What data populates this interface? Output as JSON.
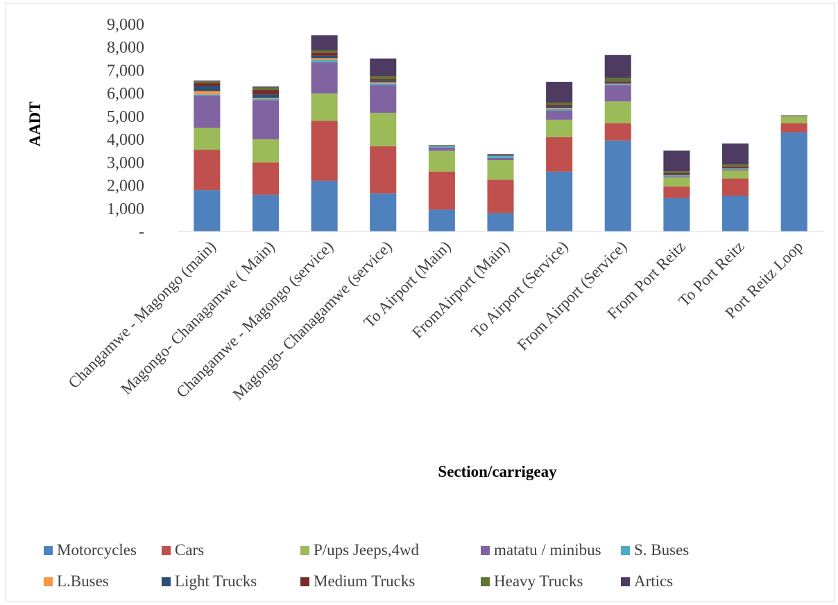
{
  "chart_data": {
    "type": "bar",
    "stacked": true,
    "title": "",
    "xlabel": "Section/carrigeay",
    "ylabel": "AADT",
    "ylim": [
      0,
      9000
    ],
    "yticks": [
      0,
      1000,
      2000,
      3000,
      4000,
      5000,
      6000,
      7000,
      8000,
      9000
    ],
    "ytick_labels": [
      "-",
      "1,000",
      "2,000",
      "3,000",
      "4,000",
      "5,000",
      "6,000",
      "7,000",
      "8,000",
      "9,000"
    ],
    "grid": false,
    "legend_position": "bottom",
    "categories": [
      "Changamwe - Magongo (main)",
      "Magongo- Chanagamwe ( Main)",
      "Changamwe - Magongo (service)",
      "Magongo- Chanagamwe (service)",
      "To Airport (Main)",
      "FromAirport (Main)",
      "To Airport (Service)",
      "From Airport (Service)",
      "From Port Reitz",
      "To Port Reitz",
      "Port Reitz Loop"
    ],
    "series": [
      {
        "name": "Motorcycles",
        "color": "#4f81bd",
        "values": [
          1800,
          1600,
          2200,
          1650,
          950,
          800,
          2600,
          3950,
          1450,
          1550,
          4300
        ]
      },
      {
        "name": "Cars",
        "color": "#c0504d",
        "values": [
          1750,
          1400,
          2600,
          2050,
          1650,
          1450,
          1500,
          750,
          500,
          750,
          400
        ]
      },
      {
        "name": "P/ups Jeeps,4wd",
        "color": "#9bbb59",
        "values": [
          950,
          1000,
          1200,
          1450,
          900,
          850,
          750,
          950,
          400,
          350,
          300
        ]
      },
      {
        "name": "matatu / minibus",
        "color": "#8064a2",
        "values": [
          1400,
          1700,
          1350,
          1200,
          150,
          100,
          400,
          700,
          50,
          50,
          30
        ]
      },
      {
        "name": "S.  Buses",
        "color": "#4bacc6",
        "values": [
          50,
          60,
          100,
          80,
          50,
          80,
          80,
          50,
          30,
          30,
          5
        ]
      },
      {
        "name": "L.Buses",
        "color": "#f79646",
        "values": [
          150,
          40,
          70,
          50,
          10,
          10,
          30,
          20,
          10,
          10,
          5
        ]
      },
      {
        "name": "Light Trucks",
        "color": "#2c4d75",
        "values": [
          220,
          150,
          100,
          60,
          20,
          40,
          60,
          40,
          40,
          30,
          5
        ]
      },
      {
        "name": "Medium Trucks",
        "color": "#772c2a",
        "values": [
          120,
          200,
          150,
          80,
          10,
          20,
          80,
          60,
          50,
          50,
          5
        ]
      },
      {
        "name": "Heavy Trucks",
        "color": "#5f7530",
        "values": [
          80,
          100,
          100,
          120,
          20,
          20,
          100,
          150,
          80,
          100,
          5
        ]
      },
      {
        "name": "Artics",
        "color": "#4d3b62",
        "values": [
          30,
          50,
          650,
          770,
          0,
          0,
          900,
          1000,
          900,
          900,
          0
        ]
      }
    ]
  }
}
